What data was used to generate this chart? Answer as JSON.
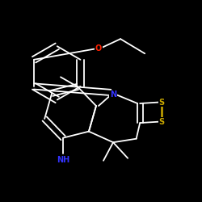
{
  "bg_color": "#000000",
  "bond_color": "#ffffff",
  "atom_colors": {
    "N": "#3333ff",
    "O": "#ff2200",
    "S": "#ccaa00",
    "NH": "#3333ff"
  },
  "figsize": [
    2.5,
    2.5
  ],
  "dpi": 100,
  "lw": 1.3,
  "fs": 7
}
